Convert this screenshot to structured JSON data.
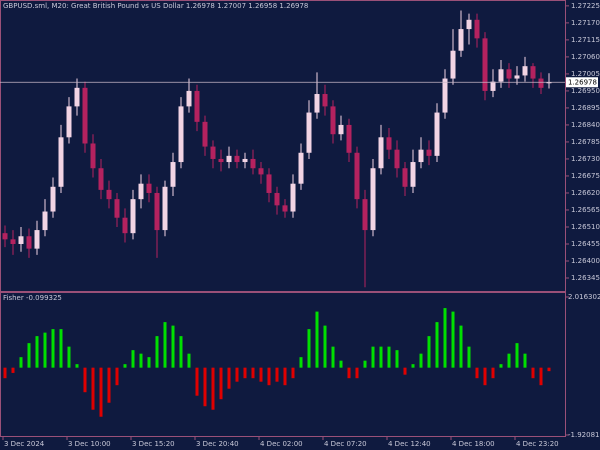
{
  "chart_data": [
    {
      "type": "candlestick",
      "title": "GBPUSD.sml, M20:  Great British Pound vs US Dollar  1.26978 1.27007 1.26958 1.26978",
      "categories": [
        "3 Dec 2024",
        null,
        null,
        null,
        null,
        null,
        null,
        null,
        "3 Dec 10:00",
        null,
        null,
        null,
        null,
        null,
        null,
        null,
        "3 Dec 15:20",
        null,
        null,
        null,
        null,
        null,
        null,
        null,
        "3 Dec 20:40",
        null,
        null,
        null,
        null,
        null,
        null,
        null,
        "4 Dec 02:00",
        null,
        null,
        null,
        null,
        null,
        null,
        null,
        "4 Dec 07:20",
        null,
        null,
        null,
        null,
        null,
        null,
        null,
        "4 Dec 12:40",
        null,
        null,
        null,
        null,
        null,
        null,
        null,
        "4 Dec 18:00",
        null,
        null,
        null,
        null,
        null,
        null,
        null,
        "4 Dec 23:20",
        null,
        null,
        null,
        null
      ],
      "open": [
        1.2649,
        1.2647,
        1.26455,
        1.2648,
        1.2644,
        1.265,
        1.2656,
        1.2664,
        1.268,
        1.269,
        1.2696,
        1.2678,
        1.267,
        1.2663,
        1.266,
        1.2654,
        1.2649,
        1.266,
        1.2665,
        1.2662,
        1.265,
        1.2664,
        1.2672,
        1.269,
        1.2695,
        1.2685,
        1.2677,
        1.2673,
        1.2672,
        1.2674,
        1.2672,
        1.2673,
        1.267,
        1.2668,
        1.2662,
        1.2658,
        1.2656,
        1.2665,
        1.2675,
        1.2688,
        1.2694,
        1.269,
        1.2681,
        1.2684,
        1.2675,
        1.266,
        1.265,
        1.267,
        1.268,
        1.2676,
        1.267,
        1.2664,
        1.2672,
        1.2676,
        1.2674,
        1.2688,
        1.2699,
        1.2708,
        1.2715,
        1.2718,
        1.2712,
        1.2695,
        1.2698,
        1.2702,
        1.2699,
        1.27,
        1.2703,
        1.2699,
        1.26978
      ],
      "high": [
        1.26515,
        1.265,
        1.2651,
        1.26505,
        1.2653,
        1.266,
        1.2667,
        1.2684,
        1.2693,
        1.2699,
        1.2698,
        1.2681,
        1.2673,
        1.2666,
        1.2662,
        1.2657,
        1.2663,
        1.2668,
        1.2668,
        1.2664,
        1.2666,
        1.2675,
        1.2693,
        1.2699,
        1.2697,
        1.2687,
        1.2679,
        1.2676,
        1.2677,
        1.2676,
        1.2675,
        1.2676,
        1.2672,
        1.267,
        1.2664,
        1.266,
        1.2668,
        1.2678,
        1.2692,
        1.2701,
        1.2697,
        1.2692,
        1.2687,
        1.2686,
        1.2677,
        1.2663,
        1.2673,
        1.2684,
        1.2683,
        1.2679,
        1.2672,
        1.2676,
        1.268,
        1.2679,
        1.2691,
        1.2702,
        1.2715,
        1.2721,
        1.272,
        1.272,
        1.2714,
        1.2702,
        1.2705,
        1.2704,
        1.2703,
        1.2706,
        1.2704,
        1.2701,
        1.27007
      ],
      "low": [
        1.26445,
        1.2642,
        1.2643,
        1.2641,
        1.2642,
        1.2648,
        1.2654,
        1.2662,
        1.2678,
        1.2687,
        1.2675,
        1.2667,
        1.266,
        1.2657,
        1.2651,
        1.2646,
        1.2647,
        1.2657,
        1.2659,
        1.2641,
        1.2648,
        1.2661,
        1.267,
        1.2688,
        1.2682,
        1.2674,
        1.267,
        1.2669,
        1.267,
        1.267,
        1.267,
        1.2668,
        1.2665,
        1.2659,
        1.2655,
        1.2654,
        1.2654,
        1.2663,
        1.2673,
        1.2686,
        1.2687,
        1.2678,
        1.2679,
        1.2672,
        1.2657,
        1.26315,
        1.2648,
        1.2668,
        1.2673,
        1.2667,
        1.2661,
        1.2662,
        1.267,
        1.2671,
        1.2672,
        1.2686,
        1.2697,
        1.2706,
        1.271,
        1.2709,
        1.2692,
        1.2693,
        1.2696,
        1.2696,
        1.2697,
        1.2698,
        1.2696,
        1.2694,
        1.26958
      ],
      "close": [
        1.2647,
        1.26455,
        1.2648,
        1.2644,
        1.265,
        1.2656,
        1.2664,
        1.268,
        1.269,
        1.2696,
        1.2678,
        1.267,
        1.2663,
        1.266,
        1.2654,
        1.2649,
        1.266,
        1.2665,
        1.2662,
        1.265,
        1.2664,
        1.2672,
        1.269,
        1.2695,
        1.2685,
        1.2677,
        1.2673,
        1.2672,
        1.2674,
        1.2672,
        1.2673,
        1.267,
        1.2668,
        1.2662,
        1.2658,
        1.2656,
        1.2665,
        1.2675,
        1.2688,
        1.2694,
        1.269,
        1.2681,
        1.2684,
        1.2675,
        1.266,
        1.265,
        1.267,
        1.268,
        1.2676,
        1.267,
        1.2664,
        1.2672,
        1.2676,
        1.2674,
        1.2688,
        1.2699,
        1.2708,
        1.2715,
        1.2718,
        1.2712,
        1.2695,
        1.2698,
        1.2702,
        1.2699,
        1.27,
        1.2703,
        1.2699,
        1.2696,
        1.26978
      ],
      "up_color": "#f2d4e4",
      "down_color": "#b4225f",
      "current_price": 1.26978,
      "ylim": [
        1.26303,
        1.27244
      ],
      "yticks": [
        1.27225,
        {
          "value": 1.2717,
          "label": "1.27170"
        },
        1.27115,
        {
          "value": 1.2706,
          "label": "1.27060"
        },
        1.27005,
        {
          "value": 1.2695,
          "label": "1.26950"
        },
        1.26895,
        {
          "value": 1.2684,
          "label": "1.26840"
        },
        1.26785,
        {
          "value": 1.2673,
          "label": "1.26730"
        },
        1.26675,
        {
          "value": 1.2662,
          "label": "1.26620"
        },
        1.26565,
        {
          "value": 1.2651,
          "label": "1.26510"
        },
        1.26455,
        {
          "value": 1.264,
          "label": "1.26400"
        },
        1.26345
      ]
    },
    {
      "type": "bar",
      "title": "Fisher -0.099325",
      "values": [
        -0.3,
        -0.15,
        0.3,
        0.7,
        0.9,
        1.0,
        1.1,
        1.1,
        0.6,
        0.1,
        -0.7,
        -1.2,
        -1.4,
        -1.0,
        -0.5,
        0.1,
        0.5,
        0.4,
        0.3,
        0.9,
        1.3,
        1.2,
        0.9,
        0.4,
        -0.8,
        -1.1,
        -1.2,
        -0.9,
        -0.6,
        -0.4,
        -0.3,
        -0.3,
        -0.4,
        -0.5,
        -0.4,
        -0.5,
        -0.3,
        0.3,
        1.1,
        1.6,
        1.2,
        0.6,
        0.2,
        -0.3,
        -0.3,
        0.2,
        0.6,
        0.6,
        0.6,
        0.5,
        -0.2,
        0.1,
        0.4,
        0.9,
        1.3,
        1.7,
        1.6,
        1.2,
        0.6,
        -0.3,
        -0.5,
        -0.3,
        0.1,
        0.4,
        0.7,
        0.4,
        -0.3,
        -0.5,
        -0.099325
      ],
      "up_color": "#00e000",
      "down_color": "#e00000",
      "ylim": [
        -1.920813,
        2.016302
      ],
      "yticks": [
        2.016302,
        -1.920813
      ]
    }
  ]
}
